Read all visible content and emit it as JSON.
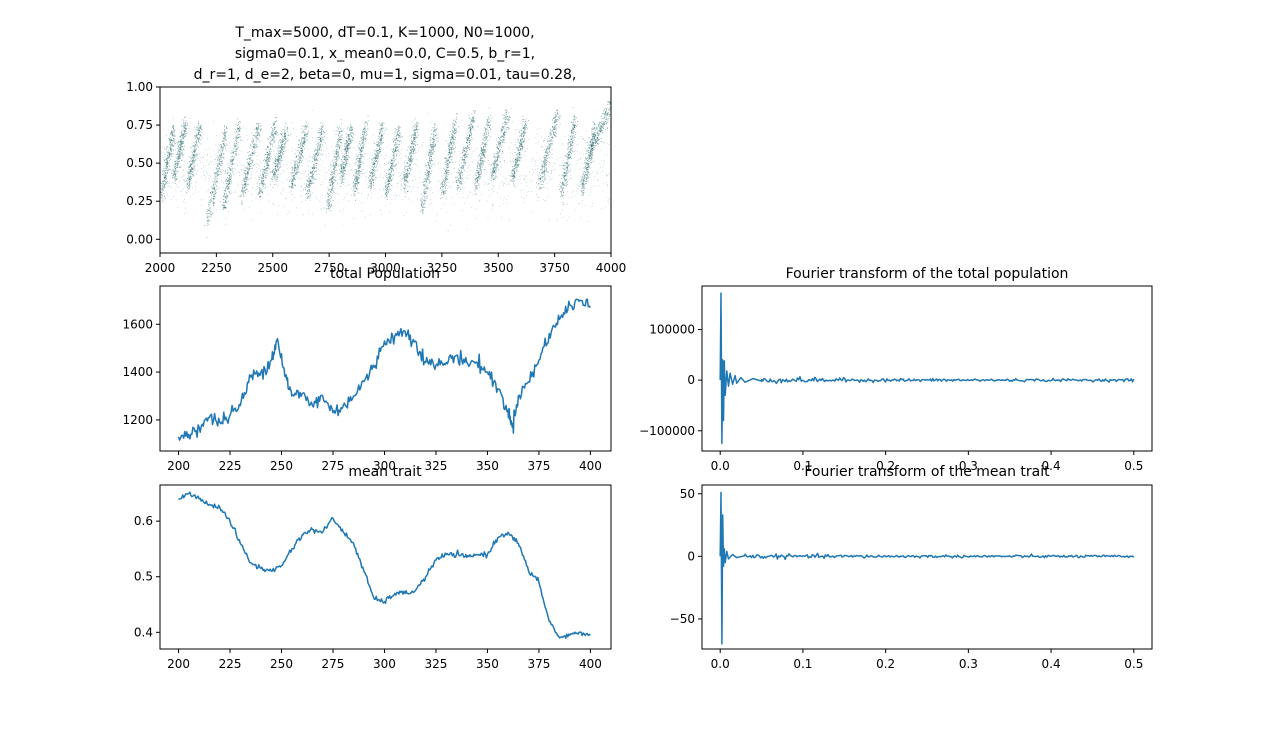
{
  "chart_data": [
    {
      "id": "scatter",
      "type": "scatter",
      "title_lines": [
        "T_max=5000, dT=0.1, K=1000, N0=1000,",
        "sigma0=0.1, x_mean0=0.0, C=0.5, b_r=1,",
        "d_r=1, d_e=2, beta=0, mu=1, sigma=0.01, tau=0.28,"
      ],
      "xlim": [
        2000,
        4000
      ],
      "ylim": [
        -0.09,
        1.0
      ],
      "xticks": [
        2000,
        2250,
        2500,
        2750,
        3000,
        3250,
        3500,
        3750,
        4000
      ],
      "xtick_labels": [
        "2000",
        "2250",
        "2500",
        "2750",
        "3000",
        "3250",
        "3500",
        "3750",
        "4000"
      ],
      "yticks": [
        0.0,
        0.25,
        0.5,
        0.75,
        1.0
      ],
      "ytick_labels": [
        "0.00",
        "0.25",
        "0.50",
        "0.75",
        "1.00"
      ],
      "color": "#2f6f73",
      "point_count_note": "",
      "branches": [
        {
          "x0": 2005,
          "y0": 0.3,
          "x1": 2060,
          "y1": 0.72
        },
        {
          "x0": 2060,
          "y0": 0.4,
          "x1": 2110,
          "y1": 0.76
        },
        {
          "x0": 2120,
          "y0": 0.35,
          "x1": 2175,
          "y1": 0.74
        },
        {
          "x0": 2210,
          "y0": 0.12,
          "x1": 2290,
          "y1": 0.72
        },
        {
          "x0": 2280,
          "y0": 0.2,
          "x1": 2350,
          "y1": 0.75
        },
        {
          "x0": 2360,
          "y0": 0.28,
          "x1": 2440,
          "y1": 0.77
        },
        {
          "x0": 2440,
          "y0": 0.3,
          "x1": 2510,
          "y1": 0.76
        },
        {
          "x0": 2500,
          "y0": 0.4,
          "x1": 2560,
          "y1": 0.72
        },
        {
          "x0": 2580,
          "y0": 0.35,
          "x1": 2650,
          "y1": 0.74
        },
        {
          "x0": 2650,
          "y0": 0.3,
          "x1": 2720,
          "y1": 0.72
        },
        {
          "x0": 2740,
          "y0": 0.2,
          "x1": 2800,
          "y1": 0.72
        },
        {
          "x0": 2800,
          "y0": 0.4,
          "x1": 2850,
          "y1": 0.74
        },
        {
          "x0": 2860,
          "y0": 0.3,
          "x1": 2910,
          "y1": 0.76
        },
        {
          "x0": 2930,
          "y0": 0.35,
          "x1": 2990,
          "y1": 0.76
        },
        {
          "x0": 3000,
          "y0": 0.3,
          "x1": 3060,
          "y1": 0.72
        },
        {
          "x0": 3080,
          "y0": 0.35,
          "x1": 3140,
          "y1": 0.76
        },
        {
          "x0": 3160,
          "y0": 0.2,
          "x1": 3220,
          "y1": 0.74
        },
        {
          "x0": 3250,
          "y0": 0.3,
          "x1": 3310,
          "y1": 0.78
        },
        {
          "x0": 3320,
          "y0": 0.35,
          "x1": 3390,
          "y1": 0.82
        },
        {
          "x0": 3400,
          "y0": 0.35,
          "x1": 3460,
          "y1": 0.8
        },
        {
          "x0": 3470,
          "y0": 0.4,
          "x1": 3540,
          "y1": 0.82
        },
        {
          "x0": 3560,
          "y0": 0.4,
          "x1": 3620,
          "y1": 0.76
        },
        {
          "x0": 3680,
          "y0": 0.35,
          "x1": 3760,
          "y1": 0.82
        },
        {
          "x0": 3780,
          "y0": 0.3,
          "x1": 3840,
          "y1": 0.8
        },
        {
          "x0": 3870,
          "y0": 0.32,
          "x1": 3930,
          "y1": 0.74
        },
        {
          "x0": 3900,
          "y0": 0.55,
          "x1": 4000,
          "y1": 0.9
        }
      ]
    },
    {
      "id": "pop",
      "type": "line",
      "title": "total Population",
      "xlim": [
        191,
        410
      ],
      "ylim": [
        1070,
        1760
      ],
      "xticks": [
        200,
        225,
        250,
        275,
        300,
        325,
        350,
        375,
        400
      ],
      "xtick_labels": [
        "200",
        "225",
        "250",
        "275",
        "300",
        "325",
        "350",
        "375",
        "400"
      ],
      "yticks": [
        1200,
        1400,
        1600
      ],
      "ytick_labels": [
        "1200",
        "1400",
        "1600"
      ],
      "color": "#1f77b4",
      "x": [
        200,
        205,
        210,
        215,
        220,
        225,
        230,
        235,
        240,
        245,
        248,
        252,
        255,
        260,
        265,
        270,
        275,
        280,
        285,
        290,
        295,
        300,
        305,
        310,
        315,
        320,
        325,
        330,
        335,
        340,
        345,
        350,
        355,
        360,
        362,
        365,
        370,
        375,
        380,
        385,
        390,
        395,
        400
      ],
      "y": [
        1130,
        1140,
        1170,
        1210,
        1190,
        1220,
        1260,
        1380,
        1400,
        1450,
        1540,
        1380,
        1300,
        1310,
        1260,
        1300,
        1230,
        1260,
        1300,
        1360,
        1420,
        1530,
        1550,
        1570,
        1530,
        1440,
        1430,
        1440,
        1470,
        1440,
        1440,
        1400,
        1330,
        1240,
        1170,
        1300,
        1360,
        1450,
        1560,
        1620,
        1680,
        1700,
        1670
      ]
    },
    {
      "id": "fft_pop",
      "type": "line",
      "title": "Fourier transform of the total population",
      "xlim": [
        -0.022,
        0.522
      ],
      "ylim": [
        -140000,
        186000
      ],
      "xticks": [
        0.0,
        0.1,
        0.2,
        0.3,
        0.4,
        0.5
      ],
      "xtick_labels": [
        "0.0",
        "0.1",
        "0.2",
        "0.3",
        "0.4",
        "0.5"
      ],
      "yticks": [
        -100000,
        0,
        100000
      ],
      "ytick_labels": [
        "−100000",
        "0",
        "100000"
      ],
      "color": "#1f77b4",
      "x": [
        0.0,
        0.001,
        0.002,
        0.003,
        0.004,
        0.005,
        0.006,
        0.008,
        0.01,
        0.012,
        0.015,
        0.018,
        0.02,
        0.025,
        0.03,
        0.04,
        0.05,
        0.5
      ],
      "y": [
        0,
        172000,
        -125000,
        40000,
        -80000,
        38000,
        -30000,
        18000,
        -12000,
        14000,
        -8000,
        9000,
        -6000,
        5000,
        -4000,
        3000,
        -2000,
        0
      ]
    },
    {
      "id": "trait",
      "type": "line",
      "title": "mean trait",
      "xlim": [
        191,
        410
      ],
      "ylim": [
        0.37,
        0.665
      ],
      "xticks": [
        200,
        225,
        250,
        275,
        300,
        325,
        350,
        375,
        400
      ],
      "xtick_labels": [
        "200",
        "225",
        "250",
        "275",
        "300",
        "325",
        "350",
        "375",
        "400"
      ],
      "yticks": [
        0.4,
        0.5,
        0.6
      ],
      "ytick_labels": [
        "0.4",
        "0.5",
        "0.6"
      ],
      "color": "#1f77b4",
      "x": [
        200,
        205,
        210,
        215,
        220,
        225,
        230,
        235,
        240,
        245,
        250,
        255,
        260,
        265,
        270,
        275,
        280,
        285,
        290,
        295,
        300,
        305,
        310,
        315,
        320,
        325,
        330,
        335,
        340,
        345,
        350,
        355,
        360,
        365,
        370,
        375,
        380,
        385,
        390,
        395,
        400
      ],
      "y": [
        0.64,
        0.65,
        0.64,
        0.63,
        0.625,
        0.6,
        0.56,
        0.525,
        0.515,
        0.51,
        0.52,
        0.55,
        0.575,
        0.585,
        0.58,
        0.605,
        0.58,
        0.56,
        0.51,
        0.46,
        0.455,
        0.47,
        0.47,
        0.475,
        0.5,
        0.53,
        0.54,
        0.54,
        0.535,
        0.54,
        0.54,
        0.57,
        0.58,
        0.56,
        0.51,
        0.49,
        0.42,
        0.39,
        0.395,
        0.4,
        0.395
      ]
    },
    {
      "id": "fft_trait",
      "type": "line",
      "title": "Fourier transform of the mean trait",
      "xlim": [
        -0.022,
        0.522
      ],
      "ylim": [
        -74,
        57
      ],
      "xticks": [
        0.0,
        0.1,
        0.2,
        0.3,
        0.4,
        0.5
      ],
      "xtick_labels": [
        "0.0",
        "0.1",
        "0.2",
        "0.3",
        "0.4",
        "0.5"
      ],
      "yticks": [
        -50,
        0,
        50
      ],
      "ytick_labels": [
        "−50",
        "0",
        "50"
      ],
      "color": "#1f77b4",
      "x": [
        0.0,
        0.001,
        0.002,
        0.003,
        0.004,
        0.005,
        0.006,
        0.008,
        0.01,
        0.015,
        0.02,
        0.03,
        0.5
      ],
      "y": [
        0,
        51,
        -70,
        33,
        -8,
        6,
        -5,
        4,
        -2,
        1.5,
        -1,
        0.5,
        0
      ]
    }
  ]
}
